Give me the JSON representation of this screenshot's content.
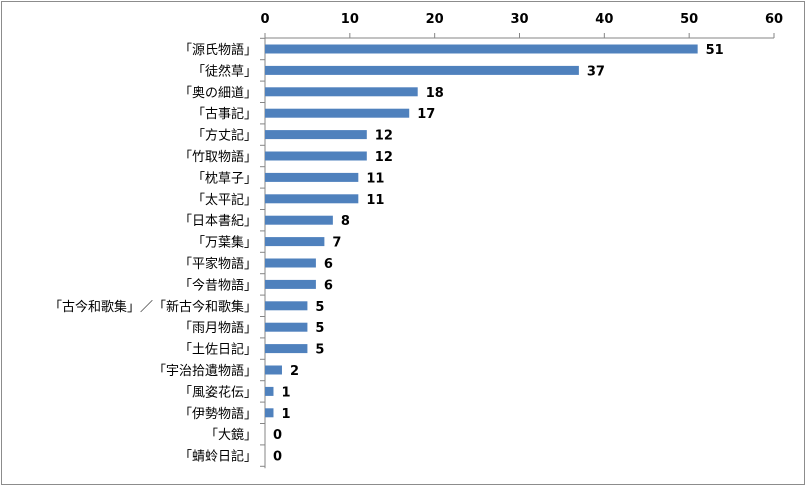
{
  "chart_data": {
    "type": "bar",
    "orientation": "horizontal",
    "title": "",
    "xlabel": "",
    "ylabel": "",
    "xlim": [
      0,
      60
    ],
    "x_ticks": [
      0,
      10,
      20,
      30,
      40,
      50,
      60
    ],
    "axis_position": "top",
    "grid": false,
    "bar_color": "#4f81bd",
    "categories": [
      "「源氏物語」",
      "「徒然草」",
      "「奥の細道」",
      "「古事記」",
      "「方丈記」",
      "「竹取物語」",
      "「枕草子」",
      "「太平記」",
      "「日本書紀」",
      "「万葉集」",
      "「平家物語」",
      "「今昔物語」",
      "「古今和歌集」／「新古今和歌集」",
      "「雨月物語」",
      "「土佐日記」",
      "「宇治拾遺物語」",
      "「風姿花伝」",
      "「伊勢物語」",
      "「大鏡」",
      "「蜻蛉日記」"
    ],
    "values": [
      51,
      37,
      18,
      17,
      12,
      12,
      11,
      11,
      8,
      7,
      6,
      6,
      5,
      5,
      5,
      2,
      1,
      1,
      0,
      0
    ],
    "data_labels": [
      "51",
      "37",
      "18",
      "17",
      "12",
      "12",
      "11",
      "11",
      "8",
      "7",
      "6",
      "6",
      "5",
      "5",
      "5",
      "2",
      "1",
      "1",
      "0",
      "0"
    ]
  }
}
